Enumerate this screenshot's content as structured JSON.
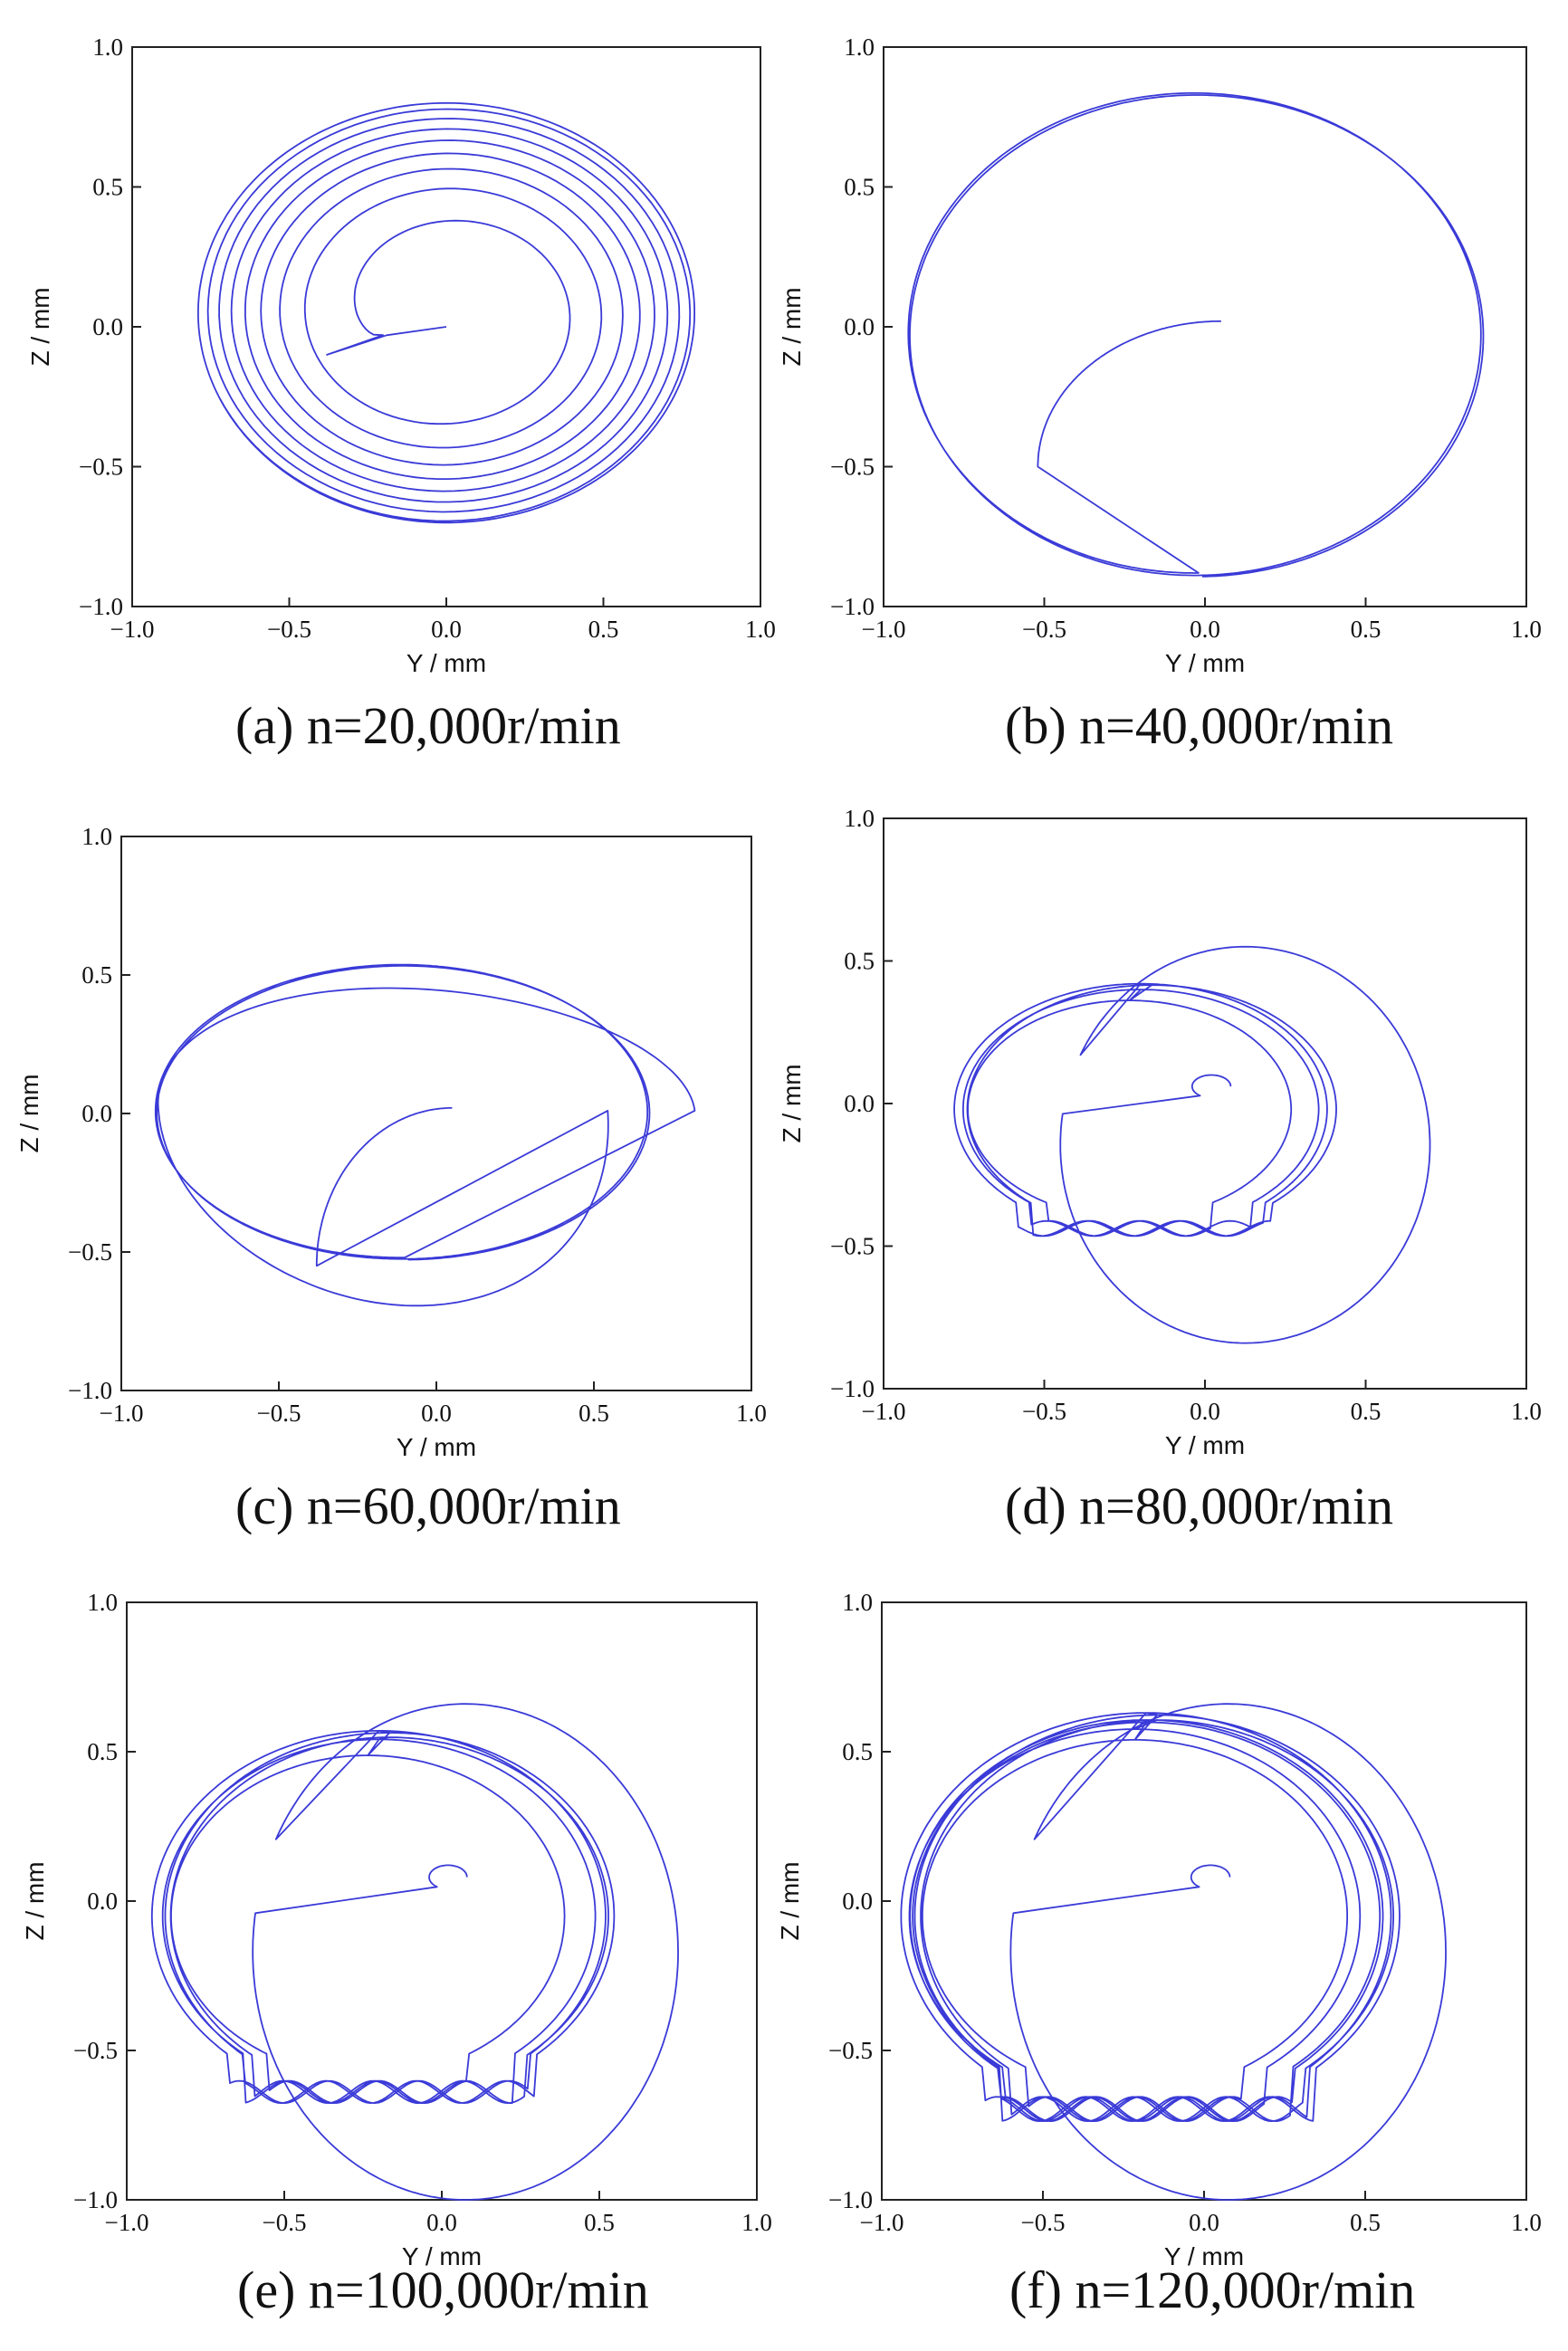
{
  "figure": {
    "line_color": "#3a3ad8",
    "background": "#ffffff"
  },
  "chart_data": [
    {
      "type": "line",
      "panel": "a",
      "caption": "(a) n=20,000r/min",
      "xlabel": "Y / mm",
      "ylabel": "Z / mm",
      "xlim": [
        -1.0,
        1.0
      ],
      "ylim": [
        -1.0,
        1.0
      ],
      "xticks": [
        "−1.0",
        "−0.5",
        "0.0",
        "0.5",
        "1.0"
      ],
      "yticks": [
        "−1.0",
        "−0.5",
        "0.0",
        "0.5",
        "1.0"
      ],
      "series": [
        {
          "name": "orbit",
          "kind": "growing-spiral",
          "cx": 0.0,
          "cy": 0.05,
          "rx0": 0.22,
          "ry0": 0.2,
          "rx1": 0.79,
          "ry1": 0.75,
          "turns": 8,
          "start": [
            0.0,
            0.0
          ],
          "entry": [
            -0.38,
            -0.1
          ]
        }
      ]
    },
    {
      "type": "line",
      "panel": "b",
      "caption": "(b) n=40,000r/min",
      "xlabel": "Y / mm",
      "ylabel": "Z / mm",
      "xlim": [
        -1.0,
        1.0
      ],
      "ylim": [
        -1.0,
        1.0
      ],
      "xticks": [
        "−1.0",
        "−0.5",
        "0.0",
        "0.5",
        "1.0"
      ],
      "yticks": [
        "−1.0",
        "−0.5",
        "0.0",
        "0.5",
        "1.0"
      ],
      "series": [
        {
          "name": "orbit",
          "kind": "transient-then-ellipse",
          "cx": -0.02,
          "cy": -0.02,
          "rx": 0.89,
          "ry": 0.86,
          "start": [
            0.05,
            0.02
          ],
          "entry": [
            -0.52,
            -0.5
          ]
        }
      ]
    },
    {
      "type": "line",
      "panel": "c",
      "caption": "(c) n=60,000r/min",
      "xlabel": "Y / mm",
      "ylabel": "Z / mm",
      "xlim": [
        -1.0,
        1.0
      ],
      "ylim": [
        -1.0,
        1.0
      ],
      "xticks": [
        "−1.0",
        "−0.5",
        "0.0",
        "0.5",
        "1.0"
      ],
      "yticks": [
        "−1.0",
        "−0.5",
        "0.0",
        "0.5",
        "1.0"
      ],
      "series": [
        {
          "name": "orbit",
          "kind": "transient-then-ellipse",
          "cx": -0.1,
          "cy": 0.01,
          "rx": 0.78,
          "ry": 0.53,
          "start": [
            0.05,
            0.02
          ],
          "entry": [
            -0.38,
            -0.55
          ],
          "outer": {
            "right": 0.82,
            "bottom": -0.75
          }
        }
      ]
    },
    {
      "type": "line",
      "panel": "d",
      "caption": "(d) n=80,000r/min",
      "xlabel": "Y / mm",
      "ylabel": "Z / mm",
      "xlim": [
        -1.0,
        1.0
      ],
      "ylim": [
        -1.0,
        1.0
      ],
      "xticks": [
        "−1.0",
        "−0.5",
        "0.0",
        "0.5",
        "1.0"
      ],
      "yticks": [
        "−1.0",
        "−0.5",
        "0.0",
        "0.5",
        "1.0"
      ],
      "series": [
        {
          "name": "orbit",
          "kind": "quasi-periodic",
          "cx": -0.2,
          "cy": -0.02,
          "rx": 0.58,
          "ry": 0.44,
          "start": [
            0.08,
            0.08
          ],
          "loops": 4,
          "outer": {
            "left": -0.45,
            "right": 0.7,
            "top": 0.55,
            "bottom": -0.84
          }
        }
      ]
    },
    {
      "type": "line",
      "panel": "e",
      "caption": "(e) n=100,000r/min",
      "xlabel": "Y / mm",
      "ylabel": "Z / mm",
      "xlim": [
        -1.0,
        1.0
      ],
      "ylim": [
        -1.0,
        1.0
      ],
      "xticks": [
        "−1.0",
        "−0.5",
        "0.0",
        "0.5",
        "1.0"
      ],
      "yticks": [
        "−1.0",
        "−0.5",
        "0.0",
        "0.5",
        "1.0"
      ],
      "series": [
        {
          "name": "orbit",
          "kind": "quasi-periodic",
          "cx": -0.2,
          "cy": -0.05,
          "rx": 0.72,
          "ry": 0.62,
          "start": [
            0.08,
            0.1
          ],
          "loops": 5,
          "outer": {
            "left": -0.6,
            "right": 0.75,
            "top": 0.66,
            "bottom": -1.0
          }
        }
      ]
    },
    {
      "type": "line",
      "panel": "f",
      "caption": "(f) n=120,000r/min",
      "xlabel": "Y / mm",
      "ylabel": "Z / mm",
      "xlim": [
        -1.0,
        1.0
      ],
      "ylim": [
        -1.0,
        1.0
      ],
      "xticks": [
        "−1.0",
        "−0.5",
        "0.0",
        "0.5",
        "1.0"
      ],
      "yticks": [
        "−1.0",
        "−0.5",
        "0.0",
        "0.5",
        "1.0"
      ],
      "series": [
        {
          "name": "orbit",
          "kind": "quasi-periodic",
          "cx": -0.18,
          "cy": -0.05,
          "rx": 0.76,
          "ry": 0.68,
          "start": [
            0.08,
            0.1
          ],
          "loops": 7,
          "outer": {
            "left": -0.6,
            "right": 0.75,
            "top": 0.66,
            "bottom": -1.0
          }
        }
      ]
    }
  ]
}
